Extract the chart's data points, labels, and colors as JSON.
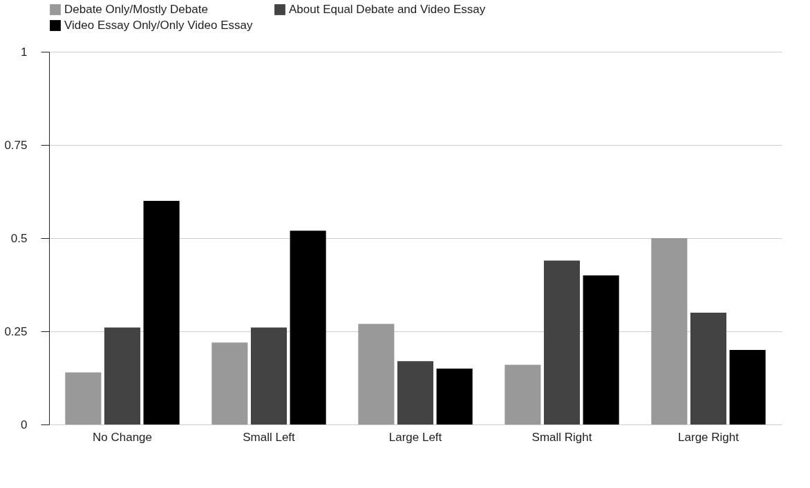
{
  "chart_data": {
    "type": "bar",
    "categories": [
      "No Change",
      "Small Left",
      "Large Left",
      "Small Right",
      "Large Right"
    ],
    "series": [
      {
        "name": "Debate Only/Mostly Debate",
        "color": "#999999",
        "values": [
          0.14,
          0.22,
          0.27,
          0.16,
          0.5
        ]
      },
      {
        "name": "About Equal Debate and Video Essay",
        "color": "#434343",
        "values": [
          0.26,
          0.26,
          0.17,
          0.44,
          0.3
        ]
      },
      {
        "name": "Video Essay Only/Only Video Essay",
        "color": "#000000",
        "values": [
          0.6,
          0.52,
          0.15,
          0.4,
          0.2
        ]
      }
    ],
    "ylim": [
      0,
      1
    ],
    "yticks": [
      0,
      0.25,
      0.5,
      0.75,
      1
    ],
    "grid": "y",
    "legend": "top"
  }
}
